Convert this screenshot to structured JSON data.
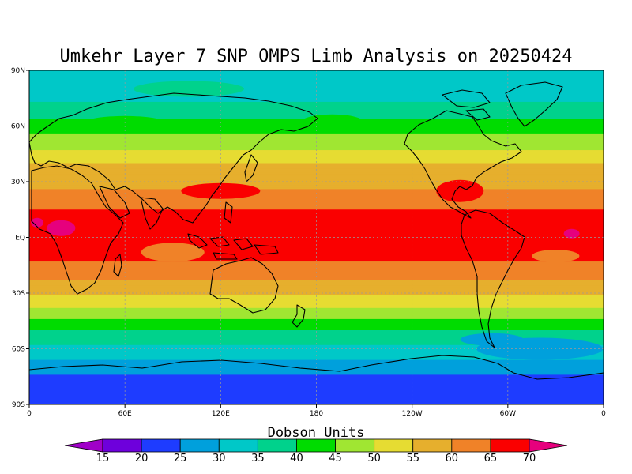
{
  "chart_data": {
    "type": "heatmap",
    "title": "Umkehr Layer 7 SNP OMPS Limb Analysis on 20250424",
    "xlabel": "",
    "ylabel": "",
    "x_ticks": [
      "0",
      "60E",
      "120E",
      "180",
      "120W",
      "60W",
      "0"
    ],
    "y_ticks": [
      "90N",
      "60N",
      "30N",
      "EQ",
      "30S",
      "60S",
      "90S"
    ],
    "xlim": [
      0,
      360
    ],
    "ylim": [
      -90,
      90
    ],
    "grid": true,
    "colorbar": {
      "title": "Dobson Units",
      "levels": [
        15,
        20,
        25,
        30,
        35,
        40,
        45,
        50,
        55,
        60,
        65,
        70
      ],
      "colors": [
        "#a000c8",
        "#6e00dc",
        "#1e3cff",
        "#00a0dc",
        "#00c8c8",
        "#00d28c",
        "#00dc00",
        "#a0e632",
        "#e6dc32",
        "#e6af2d",
        "#f08228",
        "#fa0000",
        "#e6007d"
      ]
    },
    "zonal_profile": [
      {
        "lat": 90,
        "value": 33
      },
      {
        "lat": 80,
        "value": 33
      },
      {
        "lat": 70,
        "value": 36
      },
      {
        "lat": 60,
        "value": 43
      },
      {
        "lat": 50,
        "value": 48
      },
      {
        "lat": 40,
        "value": 55
      },
      {
        "lat": 30,
        "value": 58
      },
      {
        "lat": 20,
        "value": 63
      },
      {
        "lat": 10,
        "value": 67
      },
      {
        "lat": 0,
        "value": 68
      },
      {
        "lat": -10,
        "value": 66
      },
      {
        "lat": -20,
        "value": 62
      },
      {
        "lat": -30,
        "value": 56
      },
      {
        "lat": -40,
        "value": 48
      },
      {
        "lat": -50,
        "value": 40
      },
      {
        "lat": -60,
        "value": 34
      },
      {
        "lat": -70,
        "value": 27
      },
      {
        "lat": -80,
        "value": 22
      },
      {
        "lat": -90,
        "value": 22
      }
    ]
  }
}
